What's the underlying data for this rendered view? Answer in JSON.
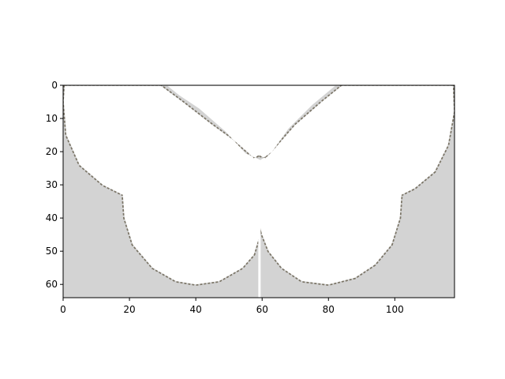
{
  "chart_data": {
    "type": "heatmap",
    "title": "",
    "xlabel": "",
    "ylabel": "",
    "image_shape": [
      64,
      118
    ],
    "xlim": [
      0,
      118
    ],
    "ylim": [
      64,
      0
    ],
    "xticks": [
      0,
      20,
      40,
      60,
      80,
      100
    ],
    "yticks": [
      0,
      10,
      20,
      30,
      40,
      50,
      60
    ],
    "grid": false,
    "legend": "none",
    "content": "binary mask image of a white butterfly silhouette on a light gray background",
    "colors": {
      "background": "#d3d3d3",
      "foreground": "#ffffff",
      "edge": "#7a7466",
      "frame": "#000000"
    }
  }
}
